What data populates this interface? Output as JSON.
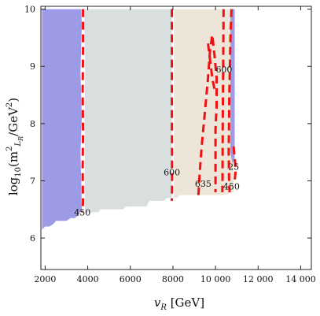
{
  "chart_data": {
    "type": "contour",
    "x_axis": {
      "label": "v_R [GeV]",
      "label_symbol": "v",
      "label_sub": "R",
      "label_unit": " [GeV]",
      "range": [
        1800,
        14500
      ],
      "ticks": [
        2000,
        4000,
        6000,
        8000,
        10000,
        12000,
        14000
      ],
      "tick_labels": [
        "2000",
        "4000",
        "6000",
        "8000",
        "10 000",
        "12 000",
        "14 000"
      ]
    },
    "y_axis": {
      "label": "log10(m^2_{L_R}/GeV^2)",
      "label_prefix": "log",
      "label_prefix_sub": "10",
      "label_var": "(m",
      "label_var_sup": "2",
      "label_var_sub": "L",
      "label_var_sub2": "R",
      "label_unit": "/GeV",
      "label_unit_sup": "2",
      "label_close": ")",
      "range": [
        5.45,
        10.05
      ],
      "ticks": [
        6,
        7,
        8,
        9,
        10
      ],
      "tick_labels": [
        "6",
        "7",
        "8",
        "9",
        "10"
      ]
    },
    "regions": [
      {
        "name": "region-blue",
        "color": "#9e9be6",
        "polygon": [
          [
            1850,
            10.0
          ],
          [
            3700,
            10.0
          ],
          [
            3720,
            9.7
          ],
          [
            3660,
            8.9
          ],
          [
            3720,
            8.1
          ],
          [
            3660,
            7.5
          ],
          [
            3700,
            6.9
          ],
          [
            3720,
            6.5
          ],
          [
            3550,
            6.4
          ],
          [
            3400,
            6.35
          ],
          [
            3200,
            6.35
          ],
          [
            3000,
            6.3
          ],
          [
            2500,
            6.3
          ],
          [
            2400,
            6.25
          ],
          [
            2200,
            6.2
          ],
          [
            2000,
            6.2
          ],
          [
            1850,
            6.15
          ]
        ]
      },
      {
        "name": "region-grey",
        "color": "#d9dfdf",
        "polygon": [
          [
            3850,
            10.0
          ],
          [
            7950,
            10.0
          ],
          [
            7950,
            6.7
          ],
          [
            7700,
            6.7
          ],
          [
            7600,
            6.65
          ],
          [
            6900,
            6.65
          ],
          [
            6750,
            6.55
          ],
          [
            5800,
            6.55
          ],
          [
            5650,
            6.5
          ],
          [
            4600,
            6.5
          ],
          [
            4500,
            6.45
          ],
          [
            3870,
            6.45
          ],
          [
            3850,
            6.9
          ],
          [
            3870,
            7.5
          ],
          [
            3850,
            8.1
          ],
          [
            3880,
            8.9
          ],
          [
            3840,
            9.7
          ]
        ]
      },
      {
        "name": "region-beige",
        "color": "#ede6d8",
        "polygon": [
          [
            8050,
            10.0
          ],
          [
            10850,
            10.0
          ],
          [
            10850,
            6.8
          ],
          [
            10400,
            6.75
          ],
          [
            8300,
            6.75
          ],
          [
            8200,
            6.7
          ],
          [
            8050,
            6.7
          ]
        ]
      },
      {
        "name": "region-blue-right",
        "color": "#9e9be6",
        "polygon": [
          [
            10700,
            10.0
          ],
          [
            10900,
            10.0
          ],
          [
            10900,
            7.4
          ],
          [
            10800,
            7.3
          ],
          [
            10700,
            7.5
          ]
        ]
      }
    ],
    "contours": [
      {
        "label": "450",
        "points": [
          [
            3780,
            10.0
          ],
          [
            3780,
            9.3
          ],
          [
            3760,
            8.6
          ],
          [
            3780,
            7.9
          ],
          [
            3760,
            7.2
          ],
          [
            3780,
            6.6
          ],
          [
            3720,
            6.45
          ]
        ]
      },
      {
        "label": "600",
        "points": [
          [
            7950,
            10.0
          ],
          [
            7950,
            8.3
          ],
          [
            7960,
            7.0
          ],
          [
            7950,
            6.65
          ]
        ]
      },
      {
        "label": "635",
        "points": [
          [
            9200,
            6.75
          ],
          [
            9250,
            7.1
          ],
          [
            9350,
            7.6
          ],
          [
            9500,
            8.2
          ],
          [
            9650,
            8.8
          ],
          [
            9750,
            9.3
          ],
          [
            9850,
            9.55
          ],
          [
            9950,
            9.2
          ],
          [
            10050,
            8.8
          ],
          [
            10050,
            8.3
          ],
          [
            10000,
            7.9
          ],
          [
            10000,
            7.3
          ],
          [
            10000,
            6.8
          ]
        ]
      },
      {
        "label": "600",
        "points": [
          [
            9650,
            9.4
          ],
          [
            9750,
            9.1
          ],
          [
            9850,
            8.8
          ],
          [
            9950,
            8.6
          ]
        ]
      },
      {
        "label": "600",
        "points": [
          [
            10380,
            10.0
          ],
          [
            10360,
            9.0
          ],
          [
            10340,
            8.0
          ],
          [
            10330,
            7.0
          ],
          [
            10320,
            6.8
          ]
        ]
      },
      {
        "label": "450",
        "points": [
          [
            10750,
            10.0
          ],
          [
            10700,
            9.5
          ],
          [
            10650,
            8.5
          ],
          [
            10620,
            7.5
          ],
          [
            10640,
            7.0
          ],
          [
            10660,
            6.8
          ]
        ]
      },
      {
        "label": "25",
        "points": [
          [
            10850,
            7.6
          ],
          [
            10900,
            7.4
          ],
          [
            10950,
            7.2
          ],
          [
            10900,
            7.0
          ]
        ]
      }
    ],
    "contour_labels": [
      {
        "text": "450",
        "x": 3750,
        "y": 6.45
      },
      {
        "text": "600",
        "x": 7950,
        "y": 7.15
      },
      {
        "text": "635",
        "x": 9420,
        "y": 6.95
      },
      {
        "text": "600",
        "x": 10400,
        "y": 8.95
      },
      {
        "text": "450",
        "x": 10750,
        "y": 6.9
      },
      {
        "text": "25",
        "x": 10850,
        "y": 7.25
      }
    ],
    "colors": {
      "contour": "#ee1111",
      "frame": "#222222"
    },
    "grid": false,
    "legend": "none"
  }
}
